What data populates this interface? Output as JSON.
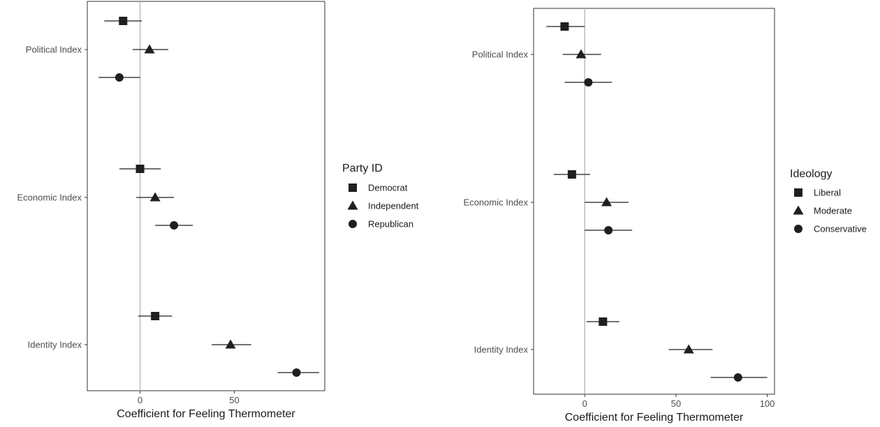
{
  "colors": {
    "marker": "#1f1f1f",
    "zero_line": "#b3b3b3",
    "panel_border": "#333333",
    "tick_text": "#4d4d4d"
  },
  "chart_data": [
    {
      "type": "scatter",
      "subtype": "coefficient-plot-with-error-bars",
      "xlabel": "Coefficient for Feeling Thermometer",
      "x_ticks": [
        0,
        50
      ],
      "xlim": [
        -28,
        98
      ],
      "zero_line": 0,
      "grid": false,
      "categories": [
        "Political Index",
        "Economic Index",
        "Identity Index"
      ],
      "legend": {
        "title": "Party ID",
        "position": "right",
        "items": [
          {
            "label": "Democrat",
            "shape": "square"
          },
          {
            "label": "Independent",
            "shape": "triangle"
          },
          {
            "label": "Republican",
            "shape": "circle"
          }
        ]
      },
      "series": [
        {
          "name": "Democrat",
          "shape": "square",
          "points": [
            {
              "category": "Political Index",
              "estimate": -9,
              "low": -19,
              "high": 1
            },
            {
              "category": "Economic Index",
              "estimate": 0,
              "low": -11,
              "high": 11
            },
            {
              "category": "Identity Index",
              "estimate": 8,
              "low": -1,
              "high": 17
            }
          ]
        },
        {
          "name": "Independent",
          "shape": "triangle",
          "points": [
            {
              "category": "Political Index",
              "estimate": 5,
              "low": -4,
              "high": 15
            },
            {
              "category": "Economic Index",
              "estimate": 8,
              "low": -2,
              "high": 18
            },
            {
              "category": "Identity Index",
              "estimate": 48,
              "low": 38,
              "high": 59
            }
          ]
        },
        {
          "name": "Republican",
          "shape": "circle",
          "points": [
            {
              "category": "Political Index",
              "estimate": -11,
              "low": -22,
              "high": 0
            },
            {
              "category": "Economic Index",
              "estimate": 18,
              "low": 8,
              "high": 28
            },
            {
              "category": "Identity Index",
              "estimate": 83,
              "low": 73,
              "high": 95
            }
          ]
        }
      ]
    },
    {
      "type": "scatter",
      "subtype": "coefficient-plot-with-error-bars",
      "xlabel": "Coefficient for Feeling Thermometer",
      "x_ticks": [
        0,
        50,
        100
      ],
      "xlim": [
        -28,
        104
      ],
      "zero_line": 0,
      "grid": false,
      "categories": [
        "Political Index",
        "Economic Index",
        "Identity Index"
      ],
      "legend": {
        "title": "Ideology",
        "position": "right",
        "items": [
          {
            "label": "Liberal",
            "shape": "square"
          },
          {
            "label": "Moderate",
            "shape": "triangle"
          },
          {
            "label": "Conservative",
            "shape": "circle"
          }
        ]
      },
      "series": [
        {
          "name": "Liberal",
          "shape": "square",
          "points": [
            {
              "category": "Political Index",
              "estimate": -11,
              "low": -21,
              "high": 0
            },
            {
              "category": "Economic Index",
              "estimate": -7,
              "low": -17,
              "high": 3
            },
            {
              "category": "Identity Index",
              "estimate": 10,
              "low": 1,
              "high": 19
            }
          ]
        },
        {
          "name": "Moderate",
          "shape": "triangle",
          "points": [
            {
              "category": "Political Index",
              "estimate": -2,
              "low": -12,
              "high": 9
            },
            {
              "category": "Economic Index",
              "estimate": 12,
              "low": 0,
              "high": 24
            },
            {
              "category": "Identity Index",
              "estimate": 57,
              "low": 46,
              "high": 70
            }
          ]
        },
        {
          "name": "Conservative",
          "shape": "circle",
          "points": [
            {
              "category": "Political Index",
              "estimate": 2,
              "low": -11,
              "high": 15
            },
            {
              "category": "Economic Index",
              "estimate": 13,
              "low": 0,
              "high": 26
            },
            {
              "category": "Identity Index",
              "estimate": 84,
              "low": 69,
              "high": 100
            }
          ]
        }
      ]
    }
  ]
}
